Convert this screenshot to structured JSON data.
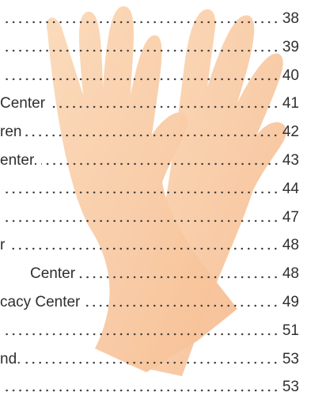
{
  "toc": {
    "entries": [
      {
        "page": "38"
      },
      {
        "page": "39"
      },
      {
        "page": "40"
      },
      {
        "label": "Center",
        "page": "41"
      },
      {
        "label": "ren",
        "page": "42"
      },
      {
        "label": "enter.",
        "page": "43"
      },
      {
        "page": "44"
      },
      {
        "page": "47"
      },
      {
        "label": "r",
        "page": "48"
      },
      {
        "label": "Center",
        "page": "48"
      },
      {
        "label": "cacy Center",
        "page": "49"
      },
      {
        "page": "51"
      },
      {
        "label": "nd.",
        "page": "53"
      },
      {
        "page": "53"
      }
    ]
  }
}
